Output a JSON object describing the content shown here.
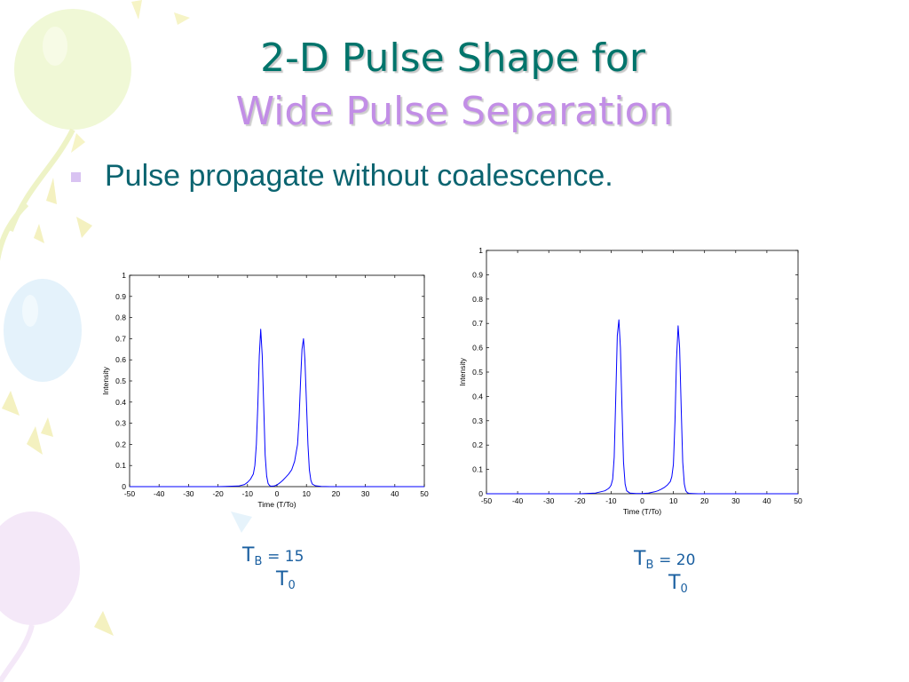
{
  "slide": {
    "title_line1": "2-D Pulse Shape for",
    "title_line2": "Wide Pulse Separation",
    "bullet": "Pulse propagate without coalescence."
  },
  "annotations": [
    {
      "T": "T",
      "sub1": "B",
      "eq": "= 15",
      "T2": "T",
      "sub2": "0"
    },
    {
      "T": "T",
      "sub1": "B",
      "eq": "= 20",
      "T2": "T",
      "sub2": "0"
    }
  ],
  "colors": {
    "title_teal": "#00746b",
    "title_lavender": "#c28ee6",
    "body_text": "#0b6470",
    "curve_blue": "#0000ff",
    "annotation_blue": "#1a5fa0"
  },
  "chart_data": [
    {
      "type": "line",
      "xlabel": "Time (T/To)",
      "ylabel": "Intensity",
      "xlim": [
        -50,
        50
      ],
      "ylim": [
        0,
        1
      ],
      "xticks": [
        "-50",
        "-40",
        "-30",
        "-20",
        "-10",
        "0",
        "10",
        "20",
        "30",
        "40",
        "50"
      ],
      "yticks": [
        "0",
        "0.1",
        "0.2",
        "0.3",
        "0.4",
        "0.5",
        "0.6",
        "0.7",
        "0.8",
        "0.9",
        "1"
      ],
      "grid": false,
      "series": [
        {
          "x": [
            -50,
            -20,
            -13,
            -11,
            -10,
            -9,
            -8,
            -7.5,
            -7,
            -6.5,
            -6,
            -5.5,
            -5,
            -4.5,
            -4,
            -3.5,
            -3,
            -2.5,
            -2,
            -1,
            0,
            1,
            2,
            3,
            4,
            5,
            6,
            7,
            7.5,
            8,
            8.5,
            9,
            9.5,
            10,
            10.5,
            11,
            11.5,
            12,
            13,
            15,
            18,
            50
          ],
          "y": [
            0,
            0,
            0.003,
            0.01,
            0.02,
            0.035,
            0.06,
            0.1,
            0.2,
            0.38,
            0.62,
            0.745,
            0.62,
            0.38,
            0.15,
            0.05,
            0.015,
            0.005,
            0.002,
            0.003,
            0.008,
            0.018,
            0.03,
            0.045,
            0.06,
            0.08,
            0.12,
            0.2,
            0.32,
            0.5,
            0.65,
            0.7,
            0.6,
            0.4,
            0.2,
            0.08,
            0.03,
            0.012,
            0.004,
            0.001,
            0,
            0
          ]
        }
      ]
    },
    {
      "type": "line",
      "xlabel": "Time (T/To)",
      "ylabel": "Intensity",
      "xlim": [
        -50,
        50
      ],
      "ylim": [
        0,
        1
      ],
      "xticks": [
        "-50",
        "-40",
        "-30",
        "-20",
        "-10",
        "0",
        "10",
        "20",
        "30",
        "40",
        "50"
      ],
      "yticks": [
        "0",
        "0.1",
        "0.2",
        "0.3",
        "0.4",
        "0.5",
        "0.6",
        "0.7",
        "0.8",
        "0.9",
        "1"
      ],
      "grid": false,
      "series": [
        {
          "x": [
            -50,
            -20,
            -15,
            -12,
            -11,
            -10.5,
            -10,
            -9.5,
            -9,
            -8.5,
            -8,
            -7.5,
            -7,
            -6.5,
            -6,
            -5.5,
            -5,
            -4,
            -2,
            0,
            2,
            4,
            5,
            6,
            7,
            8,
            9,
            9.5,
            10,
            10.5,
            11,
            11.5,
            12,
            12.5,
            13,
            13.5,
            14,
            14.5,
            15,
            16,
            18,
            50
          ],
          "y": [
            0,
            0,
            0.003,
            0.012,
            0.02,
            0.025,
            0.035,
            0.06,
            0.15,
            0.4,
            0.65,
            0.715,
            0.6,
            0.35,
            0.13,
            0.04,
            0.012,
            0.003,
            0.001,
            0.001,
            0.003,
            0.008,
            0.012,
            0.018,
            0.025,
            0.035,
            0.05,
            0.07,
            0.12,
            0.3,
            0.55,
            0.69,
            0.6,
            0.35,
            0.13,
            0.04,
            0.012,
            0.004,
            0.002,
            0.001,
            0,
            0
          ]
        }
      ]
    }
  ]
}
